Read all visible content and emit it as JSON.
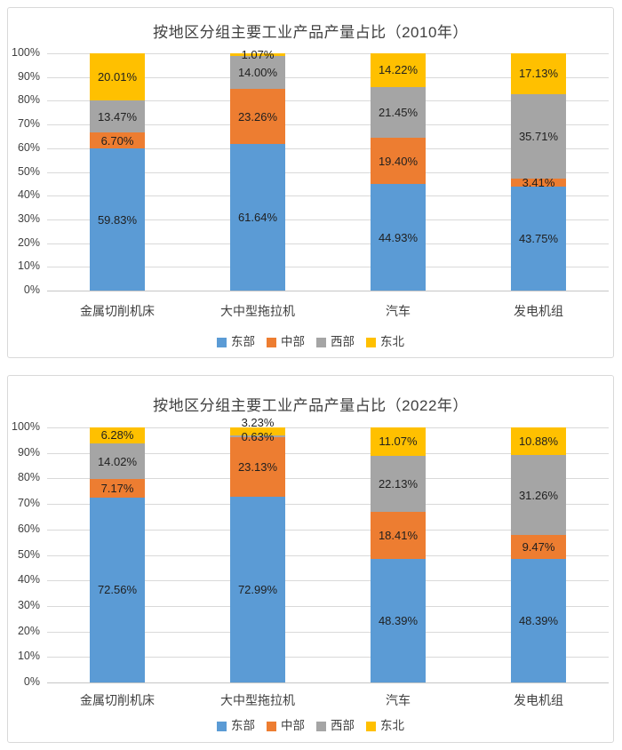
{
  "colors": {
    "east": "#5B9BD5",
    "central": "#ED7D31",
    "west": "#A5A5A5",
    "northeast": "#FFC000",
    "grid": "#D9D9D9",
    "axis_text": "#404040",
    "data_label_text": "#1F1F1F",
    "panel_border": "#D9D9D9"
  },
  "chart_data": [
    {
      "type": "bar",
      "stacked": true,
      "percent_stacked": true,
      "title": "按地区分组主要工业产品产量占比（2010年）",
      "categories": [
        "金属切削机床",
        "大中型拖拉机",
        "汽车",
        "发电机组"
      ],
      "series": [
        {
          "name": "东部",
          "key": "east",
          "color": "#5B9BD5",
          "values": [
            59.83,
            61.64,
            44.93,
            43.75
          ]
        },
        {
          "name": "中部",
          "key": "central",
          "color": "#ED7D31",
          "values": [
            6.7,
            23.26,
            19.4,
            3.41
          ]
        },
        {
          "name": "西部",
          "key": "west",
          "color": "#A5A5A5",
          "values": [
            13.47,
            14.0,
            21.45,
            35.71
          ]
        },
        {
          "name": "东北",
          "key": "northeast",
          "color": "#FFC000",
          "values": [
            20.01,
            1.07,
            14.22,
            17.13
          ]
        }
      ],
      "data_label_format": "0.00%",
      "ylim": [
        0,
        100
      ],
      "ytick_labels": [
        "0%",
        "10%",
        "20%",
        "30%",
        "40%",
        "50%",
        "60%",
        "70%",
        "80%",
        "90%",
        "100%"
      ],
      "grid": true,
      "legend_position": "bottom",
      "legend": [
        "东部",
        "中部",
        "西部",
        "东北"
      ]
    },
    {
      "type": "bar",
      "stacked": true,
      "percent_stacked": true,
      "title": "按地区分组主要工业产品产量占比（2022年）",
      "categories": [
        "金属切削机床",
        "大中型拖拉机",
        "汽车",
        "发电机组"
      ],
      "series": [
        {
          "name": "东部",
          "key": "east",
          "color": "#5B9BD5",
          "values": [
            72.56,
            72.99,
            48.39,
            48.39
          ]
        },
        {
          "name": "中部",
          "key": "central",
          "color": "#ED7D31",
          "values": [
            7.17,
            23.13,
            18.41,
            9.47
          ]
        },
        {
          "name": "西部",
          "key": "west",
          "color": "#A5A5A5",
          "values": [
            14.02,
            0.63,
            22.13,
            31.26
          ]
        },
        {
          "name": "东北",
          "key": "northeast",
          "color": "#FFC000",
          "values": [
            6.28,
            3.23,
            11.07,
            10.88
          ]
        }
      ],
      "data_label_format": "0.00%",
      "ylim": [
        0,
        100
      ],
      "ytick_labels": [
        "0%",
        "10%",
        "20%",
        "30%",
        "40%",
        "50%",
        "60%",
        "70%",
        "80%",
        "90%",
        "100%"
      ],
      "grid": true,
      "legend_position": "bottom",
      "legend": [
        "东部",
        "中部",
        "西部",
        "东北"
      ]
    }
  ]
}
